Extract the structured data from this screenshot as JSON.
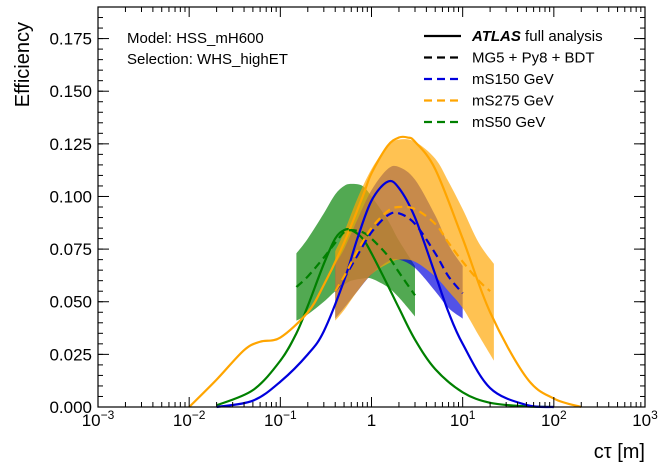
{
  "chart_data": {
    "type": "line",
    "xlabel_main": "cτ",
    "xlabel_unit": "[m]",
    "ylabel": "Efficiency",
    "x_scale": "log",
    "xlim": [
      0.001,
      1000
    ],
    "ylim": [
      0,
      0.19
    ],
    "x_ticks": [
      {
        "value": 0.001,
        "base": "10",
        "exp": "−3"
      },
      {
        "value": 0.01,
        "base": "10",
        "exp": "−2"
      },
      {
        "value": 0.1,
        "base": "10",
        "exp": "−1"
      },
      {
        "value": 1,
        "base": "1",
        "exp": ""
      },
      {
        "value": 10,
        "base": "10",
        "exp": "1"
      },
      {
        "value": 100,
        "base": "10",
        "exp": "2"
      },
      {
        "value": 1000,
        "base": "10",
        "exp": "3"
      }
    ],
    "y_ticks": [
      {
        "value": 0.0,
        "label": "0.000"
      },
      {
        "value": 0.025,
        "label": "0.025"
      },
      {
        "value": 0.05,
        "label": "0.050"
      },
      {
        "value": 0.075,
        "label": "0.075"
      },
      {
        "value": 0.1,
        "label": "0.100"
      },
      {
        "value": 0.125,
        "label": "0.125"
      },
      {
        "value": 0.15,
        "label": "0.150"
      },
      {
        "value": 0.175,
        "label": "0.175"
      }
    ],
    "info": [
      "Model: HSS_mH600",
      "Selection: WHS_highET"
    ],
    "legend": {
      "position": "top-right",
      "entries": [
        {
          "style": "solid",
          "color": "#000000",
          "bold": "ATLAS",
          "text": " full analysis"
        },
        {
          "style": "dashed",
          "color": "#000000",
          "bold": "",
          "text": "MG5 + Py8 + BDT"
        },
        {
          "style": "dashed",
          "color": "#0000dd",
          "bold": "",
          "text": "mS150 GeV"
        },
        {
          "style": "dashed",
          "color": "#ffa500",
          "bold": "",
          "text": "mS275 GeV"
        },
        {
          "style": "dashed",
          "color": "#008000",
          "bold": "",
          "text": "mS50 GeV"
        }
      ]
    },
    "series": [
      {
        "name": "mS50 GeV",
        "color": "#008000",
        "full_analysis": {
          "x": [
            0.02,
            0.05,
            0.1,
            0.15,
            0.2,
            0.3,
            0.4,
            0.5,
            0.6,
            0.8,
            1.0,
            1.5,
            2,
            3,
            5,
            10,
            20,
            50,
            100
          ],
          "y": [
            0.0008,
            0.008,
            0.022,
            0.035,
            0.048,
            0.068,
            0.08,
            0.084,
            0.084,
            0.08,
            0.073,
            0.058,
            0.047,
            0.032,
            0.018,
            0.007,
            0.002,
            0.0003,
            0.0
          ]
        },
        "bdt": {
          "x": [
            0.15,
            0.2,
            0.3,
            0.4,
            0.5,
            0.6,
            0.8,
            1.0,
            1.5,
            2,
            3
          ],
          "y": [
            0.057,
            0.062,
            0.071,
            0.078,
            0.083,
            0.084,
            0.083,
            0.08,
            0.072,
            0.064,
            0.053
          ]
        },
        "band": {
          "x": [
            0.15,
            0.2,
            0.3,
            0.4,
            0.5,
            0.6,
            0.8,
            1.0,
            1.5,
            2,
            3
          ],
          "lo": [
            0.041,
            0.044,
            0.05,
            0.055,
            0.058,
            0.06,
            0.061,
            0.061,
            0.057,
            0.052,
            0.043
          ],
          "hi": [
            0.073,
            0.08,
            0.092,
            0.101,
            0.105,
            0.106,
            0.105,
            0.1,
            0.089,
            0.079,
            0.067
          ]
        }
      },
      {
        "name": "mS150 GeV",
        "color": "#0000dd",
        "full_analysis": {
          "x": [
            0.02,
            0.05,
            0.1,
            0.2,
            0.3,
            0.5,
            0.7,
            1.0,
            1.5,
            2,
            3,
            5,
            7,
            10,
            20,
            50,
            100
          ],
          "y": [
            0.0,
            0.003,
            0.012,
            0.025,
            0.036,
            0.06,
            0.08,
            0.098,
            0.107,
            0.104,
            0.09,
            0.063,
            0.045,
            0.03,
            0.009,
            0.001,
            0.0
          ]
        },
        "bdt": {
          "x": [
            0.4,
            0.5,
            0.7,
            1.0,
            1.5,
            2,
            3,
            5,
            7,
            10
          ],
          "y": [
            0.055,
            0.061,
            0.072,
            0.083,
            0.091,
            0.092,
            0.087,
            0.073,
            0.062,
            0.054
          ]
        },
        "band": {
          "x": [
            0.4,
            0.5,
            0.7,
            1.0,
            1.5,
            2,
            3,
            5,
            7,
            10
          ],
          "lo": [
            0.042,
            0.047,
            0.055,
            0.063,
            0.069,
            0.07,
            0.066,
            0.055,
            0.047,
            0.042
          ],
          "hi": [
            0.068,
            0.075,
            0.089,
            0.103,
            0.113,
            0.114,
            0.108,
            0.091,
            0.077,
            0.067
          ]
        }
      },
      {
        "name": "mS275 GeV",
        "color": "#ffa500",
        "full_analysis": {
          "x": [
            0.01,
            0.02,
            0.04,
            0.06,
            0.1,
            0.2,
            0.3,
            0.5,
            0.8,
            1.0,
            1.5,
            2,
            2.5,
            3,
            5,
            10,
            20,
            50,
            100,
            200
          ],
          "y": [
            0.0,
            0.013,
            0.027,
            0.031,
            0.033,
            0.045,
            0.058,
            0.078,
            0.1,
            0.111,
            0.124,
            0.128,
            0.128,
            0.126,
            0.113,
            0.08,
            0.045,
            0.014,
            0.004,
            0.0
          ]
        },
        "bdt": {
          "x": [
            0.4,
            0.5,
            0.7,
            1.0,
            1.5,
            2,
            3,
            5,
            7,
            10,
            15,
            20
          ],
          "y": [
            0.055,
            0.062,
            0.074,
            0.085,
            0.093,
            0.095,
            0.094,
            0.087,
            0.078,
            0.069,
            0.06,
            0.055
          ]
        },
        "band": {
          "x": [
            0.4,
            0.5,
            0.7,
            1.0,
            1.5,
            2,
            3,
            5,
            7,
            10,
            15,
            22
          ],
          "lo": [
            0.041,
            0.046,
            0.055,
            0.063,
            0.068,
            0.07,
            0.069,
            0.062,
            0.055,
            0.047,
            0.034,
            0.022
          ],
          "hi": [
            0.074,
            0.083,
            0.099,
            0.113,
            0.124,
            0.127,
            0.126,
            0.118,
            0.107,
            0.094,
            0.078,
            0.068
          ]
        }
      }
    ],
    "draw_order": [
      "mS50 GeV",
      "mS150 GeV",
      "mS275 GeV"
    ]
  }
}
